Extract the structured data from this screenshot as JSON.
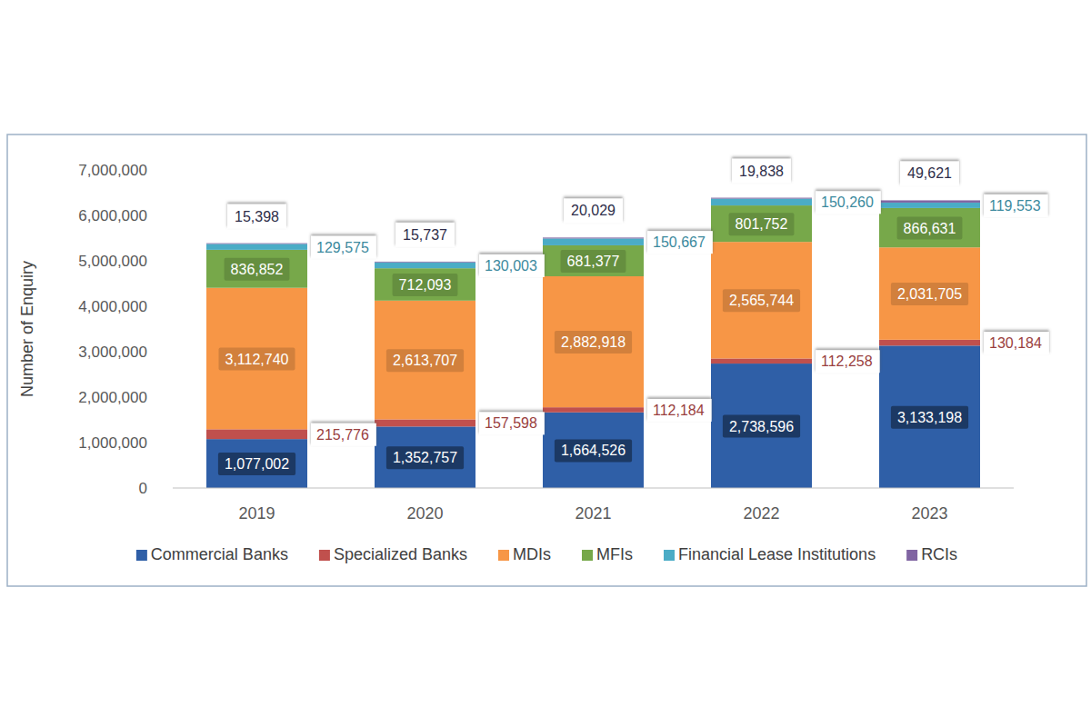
{
  "chart_data": {
    "type": "bar",
    "stacked": true,
    "data_labels": true,
    "grid": false,
    "legend": "bottom",
    "y_label": "Number of Enquiry",
    "categories": [
      "2019",
      "2020",
      "2021",
      "2022",
      "2023"
    ],
    "ylim": [
      0,
      7000000
    ],
    "yticks": [
      0,
      {
        "value": 1000000,
        "label": "1,000,000"
      },
      {
        "value": 2000000,
        "label": "2,000,000"
      },
      {
        "value": 3000000,
        "label": "3,000,000"
      },
      {
        "value": 4000000,
        "label": "4,000,000"
      },
      {
        "value": 5000000,
        "label": "5,000,000"
      },
      {
        "value": 6000000,
        "label": "6,000,000"
      },
      {
        "value": 7000000,
        "label": "7,000,000"
      }
    ],
    "series": [
      {
        "name": "Commercial Banks",
        "color": "#2f5fa7",
        "values": [
          1077002,
          1352757,
          1664526,
          2738596,
          3133198
        ],
        "value_labels": [
          "1,077,002",
          "1,352,757",
          "1,664,526",
          "2,738,596",
          "3,133,198"
        ]
      },
      {
        "name": "Specialized Banks",
        "color": "#c0504d",
        "values": [
          215776,
          157598,
          112184,
          112258,
          130184
        ],
        "value_labels": [
          "215,776",
          "157,598",
          "112,184",
          "112,258",
          "130,184"
        ]
      },
      {
        "name": "MDIs",
        "color": "#f79646",
        "values": [
          3112740,
          2613707,
          2882918,
          2565744,
          2031705
        ],
        "value_labels": [
          "3,112,740",
          "2,613,707",
          "2,882,918",
          "2,565,744",
          "2,031,705"
        ]
      },
      {
        "name": "MFIs",
        "color": "#77a84a",
        "values": [
          836852,
          712093,
          681377,
          801752,
          866631
        ],
        "value_labels": [
          "836,852",
          "712,093",
          "681,377",
          "801,752",
          "866,631"
        ]
      },
      {
        "name": "Financial Lease Institutions",
        "color": "#4bacc6",
        "values": [
          129575,
          130003,
          150667,
          150260,
          119553
        ],
        "value_labels": [
          "129,575",
          "130,003",
          "150,667",
          "150,260",
          "119,553"
        ]
      },
      {
        "name": "RCIs",
        "color": "#8064a2",
        "values": [
          15398,
          15737,
          20029,
          19838,
          49621
        ],
        "value_labels": [
          "15,398",
          "15,737",
          "20,029",
          "19,838",
          "49,621"
        ]
      }
    ]
  }
}
